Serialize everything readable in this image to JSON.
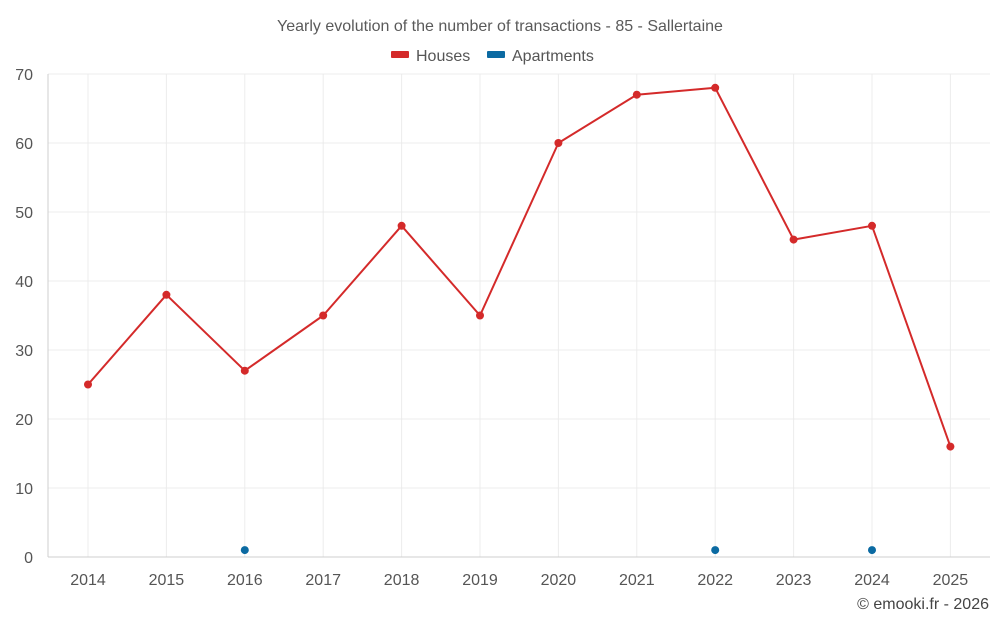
{
  "chart_data": {
    "type": "line",
    "title": "Yearly evolution of the number of transactions - 85 - Sallertaine",
    "xlabel": "",
    "ylabel": "",
    "categories": [
      "2014",
      "2015",
      "2016",
      "2017",
      "2018",
      "2019",
      "2020",
      "2021",
      "2022",
      "2023",
      "2024",
      "2025"
    ],
    "ylim": [
      0,
      70
    ],
    "yticks": [
      0,
      10,
      20,
      30,
      40,
      50,
      60,
      70
    ],
    "grid": true,
    "legend_position": "top-center",
    "series": [
      {
        "name": "Houses",
        "color": "#d42a2a",
        "values": [
          25,
          38,
          27,
          35,
          48,
          35,
          60,
          67,
          68,
          46,
          48,
          16
        ],
        "line": true
      },
      {
        "name": "Apartments",
        "color": "#0b6aa2",
        "values": [
          null,
          null,
          1,
          null,
          null,
          null,
          null,
          null,
          1,
          null,
          1,
          null
        ],
        "line": false
      }
    ]
  },
  "credit": "© emooki.fr - 2026"
}
